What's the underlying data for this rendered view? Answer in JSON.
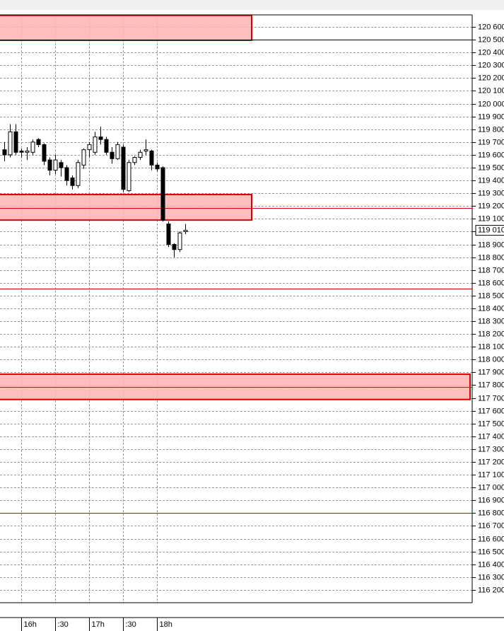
{
  "chart_data": {
    "type": "candlestick",
    "categories": [
      null,
      null,
      null,
      "16h",
      null,
      null,
      null,
      null,
      null,
      ":30",
      null,
      null,
      null,
      null,
      null,
      "17h",
      null,
      null,
      null,
      null,
      null,
      ":30",
      null,
      null,
      null,
      null,
      null,
      "18h",
      null,
      null,
      null,
      null,
      null
    ],
    "open": [
      119640,
      119600,
      119780,
      119630,
      119620,
      119620,
      119720,
      119680,
      119560,
      119480,
      119540,
      119500,
      119420,
      119360,
      119520,
      119640,
      119620,
      119740,
      119720,
      119620,
      119570,
      119660,
      119320,
      119540,
      119580,
      119630,
      119630,
      119520,
      119500,
      119060,
      118900,
      118860,
      119000
    ],
    "high": [
      119700,
      119840,
      119840,
      119650,
      119660,
      119720,
      119730,
      119690,
      119580,
      119600,
      119560,
      119520,
      119440,
      119560,
      119650,
      119700,
      119780,
      119820,
      119740,
      119660,
      119700,
      119680,
      119560,
      119590,
      119640,
      119720,
      119640,
      119540,
      119510,
      119080,
      118910,
      119000,
      119060
    ],
    "low": [
      119550,
      119580,
      119600,
      119580,
      119560,
      119600,
      119660,
      119520,
      119440,
      119450,
      119430,
      119360,
      119330,
      119340,
      119490,
      119580,
      119600,
      119680,
      119600,
      119530,
      119560,
      119310,
      119310,
      119520,
      119560,
      119600,
      119480,
      119470,
      119080,
      118880,
      118800,
      118840,
      118980
    ],
    "close": [
      119600,
      119780,
      119620,
      119620,
      119630,
      119700,
      119680,
      119550,
      119480,
      119560,
      119500,
      119400,
      119360,
      119540,
      119640,
      119680,
      119740,
      119720,
      119620,
      119570,
      119680,
      119330,
      119540,
      119580,
      119620,
      119640,
      119520,
      119490,
      119090,
      118900,
      118860,
      118990,
      119010
    ],
    "up_color": "#ffffff",
    "down_color": "#000000",
    "ylim": [
      116100,
      120694
    ],
    "yticks": [
      {
        "value": 116200,
        "label": "116 200"
      },
      {
        "value": 116300,
        "label": "116 300"
      },
      {
        "value": 116400,
        "label": "116 400"
      },
      {
        "value": 116500,
        "label": "116 500"
      },
      {
        "value": 116600,
        "label": "116 600"
      },
      {
        "value": 116700,
        "label": "116 700"
      },
      {
        "value": 116800,
        "label": "116 800"
      },
      {
        "value": 116900,
        "label": "116 900"
      },
      {
        "value": 117000,
        "label": "117 000"
      },
      {
        "value": 117100,
        "label": "117 100"
      },
      {
        "value": 117200,
        "label": "117 200"
      },
      {
        "value": 117300,
        "label": "117 300"
      },
      {
        "value": 117400,
        "label": "117 400"
      },
      {
        "value": 117500,
        "label": "117 500"
      },
      {
        "value": 117600,
        "label": "117 600"
      },
      {
        "value": 117700,
        "label": "117 700"
      },
      {
        "value": 117800,
        "label": "117 800"
      },
      {
        "value": 117900,
        "label": "117 900"
      },
      {
        "value": 118000,
        "label": "118 000"
      },
      {
        "value": 118100,
        "label": "118 100"
      },
      {
        "value": 118200,
        "label": "118 200"
      },
      {
        "value": 118300,
        "label": "118 300"
      },
      {
        "value": 118400,
        "label": "118 400"
      },
      {
        "value": 118500,
        "label": "118 500"
      },
      {
        "value": 118600,
        "label": "118 600"
      },
      {
        "value": 118700,
        "label": "118 700"
      },
      {
        "value": 118800,
        "label": "118 800"
      },
      {
        "value": 118900,
        "label": "118 900"
      },
      {
        "value": 119000,
        "label": "119 000"
      },
      {
        "value": 119100,
        "label": "119 100"
      },
      {
        "value": 119200,
        "label": "119 200"
      },
      {
        "value": 119300,
        "label": "119 300"
      },
      {
        "value": 119400,
        "label": "119 400"
      },
      {
        "value": 119500,
        "label": "119 500"
      },
      {
        "value": 119600,
        "label": "119 600"
      },
      {
        "value": 119700,
        "label": "119 700"
      },
      {
        "value": 119800,
        "label": "119 800"
      },
      {
        "value": 119900,
        "label": "119 900"
      },
      {
        "value": 120000,
        "label": "120 000"
      },
      {
        "value": 120100,
        "label": "120 100"
      },
      {
        "value": 120200,
        "label": "120 200"
      },
      {
        "value": 120300,
        "label": "120 300"
      },
      {
        "value": 120400,
        "label": "120 400"
      },
      {
        "value": 120500,
        "label": "120 500"
      },
      {
        "value": 120600,
        "label": "120 600"
      }
    ],
    "grid": true,
    "zones": [
      {
        "low": 120495,
        "high": 120690,
        "end": 43.75
      },
      {
        "low": 119090,
        "high": 119290,
        "end": 43.75
      },
      {
        "low": 117688,
        "high": 117886,
        "end": null
      }
    ],
    "zone_color": "#ffb3b3",
    "zone_border": "#dd0000",
    "levels": [
      {
        "value": 120500,
        "color": "#000000"
      },
      {
        "value": 119185,
        "color": "#dd0000"
      },
      {
        "value": 118555,
        "color": "#dd0000"
      },
      {
        "value": 117786,
        "color": "#dd0000"
      },
      {
        "value": 116803,
        "color": "#dd0000"
      }
    ],
    "last_price": {
      "value": 119010,
      "label": "119 010"
    }
  }
}
